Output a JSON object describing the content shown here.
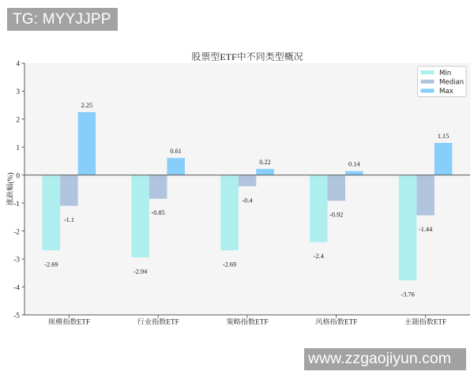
{
  "watermarks": {
    "telegram": "TG: MYYJJPP",
    "website": "www.zzgaojiyun.com"
  },
  "chart_data": {
    "type": "bar",
    "title": "股票型ETF中不同类型概况",
    "ylabel": "涨跌幅(%)",
    "xlabel": "",
    "categories": [
      "规模指数ETF",
      "行业指数ETF",
      "策略指数ETF",
      "风格指数ETF",
      "主题指数ETF"
    ],
    "series": [
      {
        "name": "Min",
        "color": "#afeeee",
        "values": [
          -2.69,
          -2.94,
          -2.69,
          -2.4,
          -3.76
        ]
      },
      {
        "name": "Median",
        "color": "#b0c4de",
        "values": [
          -1.1,
          -0.85,
          -0.4,
          -0.92,
          -1.44
        ]
      },
      {
        "name": "Max",
        "color": "#87cefa",
        "values": [
          2.25,
          0.61,
          0.22,
          0.14,
          1.15
        ]
      }
    ],
    "value_labels": {
      "Min": [
        "-2.69",
        "-2.94",
        "-2.69",
        "-2.4",
        "-3.76"
      ],
      "Median": [
        "-1.1",
        "-0.85",
        "-0.4",
        "-0.92",
        "-1.44"
      ],
      "Max": [
        "2.25",
        "0.61",
        "0.22",
        "0.14",
        "1.15"
      ]
    },
    "ylim": [
      -5,
      4
    ],
    "yticks": [
      4,
      3,
      2,
      1,
      0,
      -1,
      -2,
      -3,
      -4,
      -5
    ],
    "grid": false,
    "legend": {
      "labels": [
        "Min",
        "Median",
        "Max"
      ],
      "position": "upper right"
    },
    "plot_bg": "#f5f5f5",
    "zero_line": true
  }
}
